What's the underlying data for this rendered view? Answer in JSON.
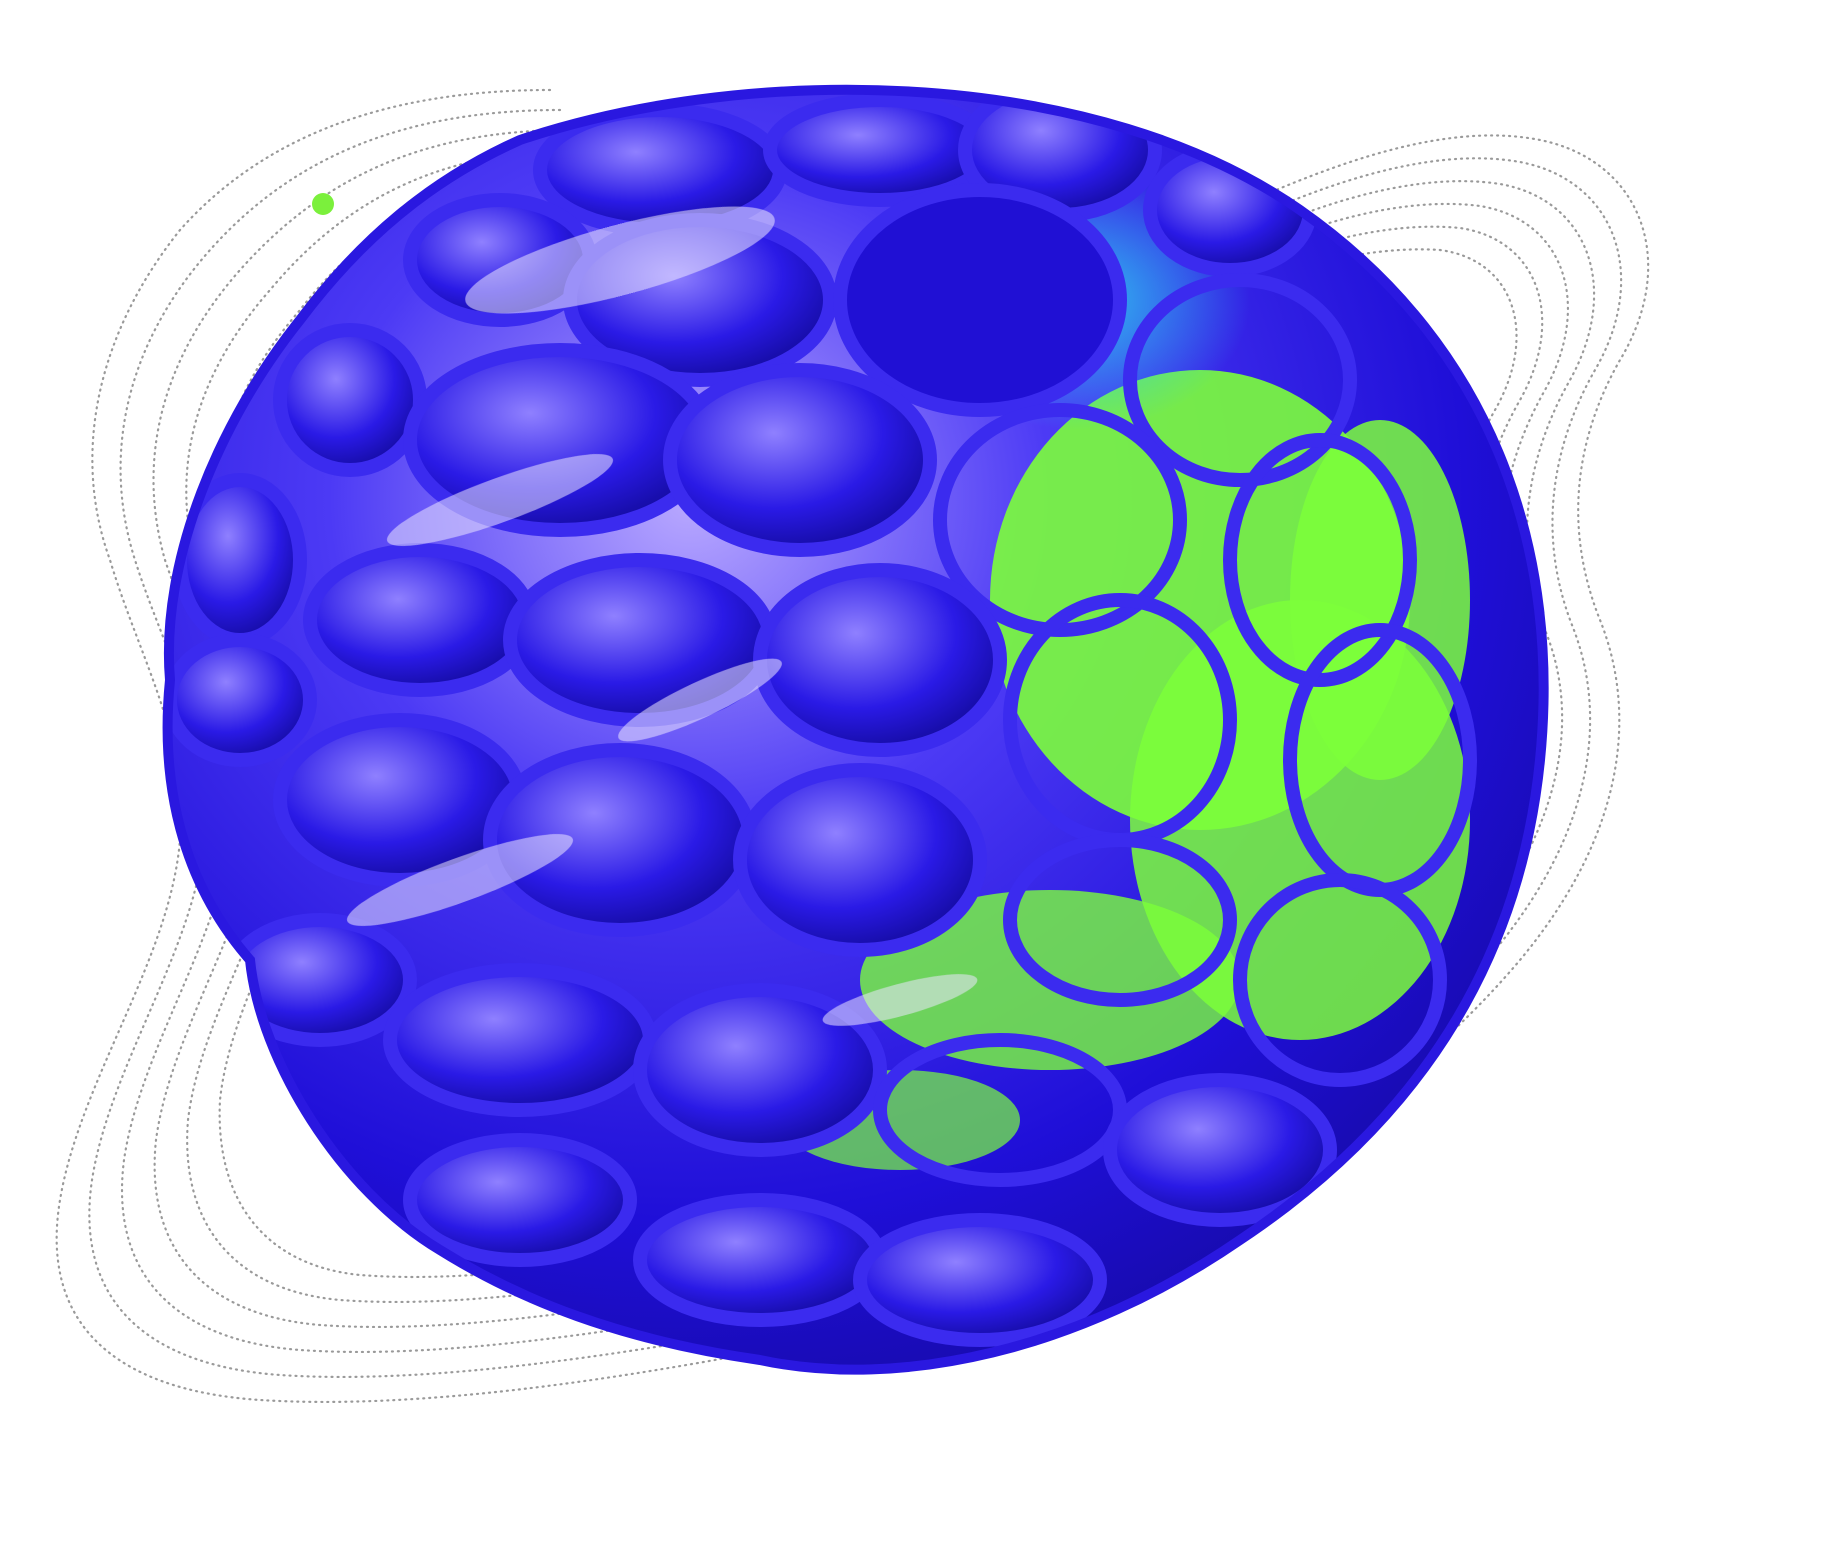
{
  "image": {
    "subject": "voronoi-lattice-sphere",
    "background_color": "#ffffff"
  },
  "colors": {
    "sphere_deep": "#1a0ad6",
    "sphere_mid": "#3a2cf0",
    "sphere_light": "#8a78ff",
    "sphere_highlight": "#e6e0ff",
    "sphere_teal": "#1fb6e8",
    "inner_green": "#7cff3a",
    "orbit_line": "#9a9a9a",
    "orbit_dot": "#7bf03c"
  },
  "orbit": {
    "ring_count": 6,
    "style": "dotted"
  }
}
